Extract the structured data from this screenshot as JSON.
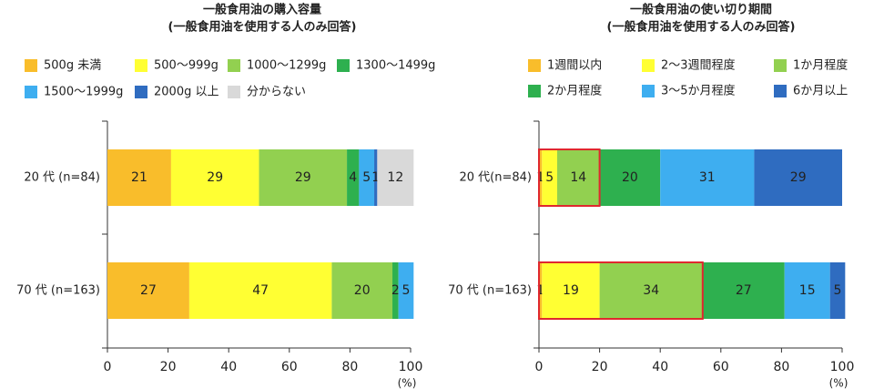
{
  "chart_data": [
    {
      "type": "stacked-bar",
      "title": "一般食用油の購入容量",
      "subtitle": "(一般食用油を使用する人のみ回答)",
      "categories": [
        "20 代 (n=84)",
        "70 代 (n=163)"
      ],
      "series": [
        {
          "name": "500g 未満",
          "color": "#f9bd2b",
          "values": [
            21,
            27
          ]
        },
        {
          "name": "500〜999g",
          "color": "#ffff33",
          "values": [
            29,
            47
          ]
        },
        {
          "name": "1000〜1299g",
          "color": "#92d050",
          "values": [
            29,
            20
          ]
        },
        {
          "name": "1300〜1499g",
          "color": "#2eb04f",
          "values": [
            4,
            2
          ]
        },
        {
          "name": "1500〜1999g",
          "color": "#3eaef0",
          "values": [
            5,
            5
          ]
        },
        {
          "name": "2000g 以上",
          "color": "#2f6cc0",
          "values": [
            1,
            0
          ]
        },
        {
          "name": "分からない",
          "color": "#d9d9d9",
          "values": [
            12,
            0
          ]
        }
      ],
      "xlim": [
        0,
        100
      ],
      "xticks": [
        0,
        20,
        40,
        60,
        80,
        100
      ],
      "x_unit": "(%)"
    },
    {
      "type": "stacked-bar",
      "title": "一般食用油の使い切り期間",
      "subtitle": "(一般食用油を使用する人のみ回答)",
      "categories": [
        "20 代(n=84)",
        "70 代 (n=163)"
      ],
      "series": [
        {
          "name": "1週間以内",
          "color": "#f9bd2b",
          "values": [
            1,
            1
          ]
        },
        {
          "name": "2〜3週間程度",
          "color": "#ffff33",
          "values": [
            5,
            19
          ]
        },
        {
          "name": "1か月程度",
          "color": "#92d050",
          "values": [
            14,
            34
          ]
        },
        {
          "name": "2か月程度",
          "color": "#2eb04f",
          "values": [
            20,
            27
          ]
        },
        {
          "name": "3〜5か月程度",
          "color": "#3eaef0",
          "values": [
            31,
            15
          ]
        },
        {
          "name": "6か月以上",
          "color": "#2f6cc0",
          "values": [
            29,
            5
          ]
        }
      ],
      "xlim": [
        0,
        100
      ],
      "xticks": [
        0,
        20,
        40,
        60,
        80,
        100
      ],
      "x_unit": "(%)"
    }
  ]
}
